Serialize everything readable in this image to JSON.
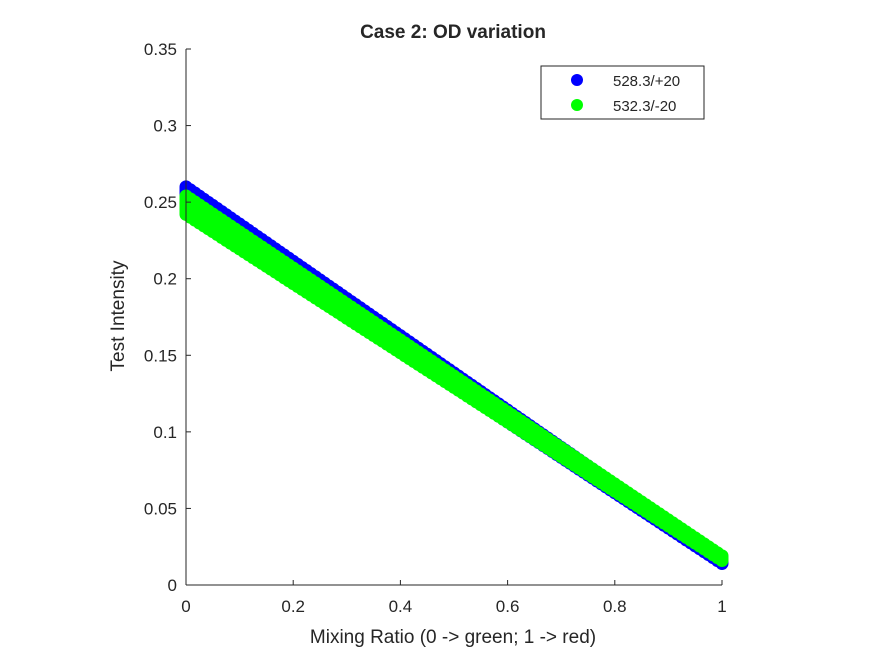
{
  "chart_data": {
    "type": "scatter",
    "title": "Case 2: OD variation",
    "xlabel": "Mixing Ratio (0 -> green; 1 -> red)",
    "ylabel": "Test Intensity",
    "xlim": [
      0,
      1
    ],
    "ylim": [
      0,
      0.35
    ],
    "xticks": [
      0,
      0.2,
      0.4,
      0.6,
      0.8,
      1
    ],
    "xtick_labels": [
      "0",
      "0.2",
      "0.4",
      "0.6",
      "0.8",
      "1"
    ],
    "yticks": [
      0,
      0.05,
      0.1,
      0.15,
      0.2,
      0.25,
      0.3,
      0.35
    ],
    "ytick_labels": [
      "0",
      "0.05",
      "0.1",
      "0.15",
      "0.2",
      "0.25",
      "0.3",
      "0.35"
    ],
    "grid": false,
    "legend_position": "top-right",
    "series": [
      {
        "name": "528.3/+20",
        "color": "#0000ff",
        "band_start": [
          0.245,
          0.26
        ],
        "band_end": [
          0.014,
          0.017
        ]
      },
      {
        "name": "532.3/-20",
        "color": "#00ff00",
        "band_start": [
          0.242,
          0.254
        ],
        "band_end": [
          0.016,
          0.019
        ]
      }
    ]
  }
}
